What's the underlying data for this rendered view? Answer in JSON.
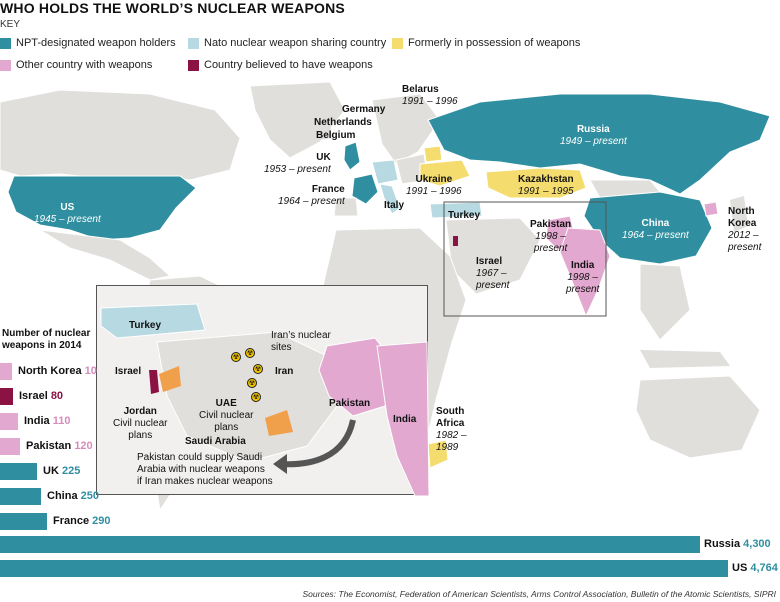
{
  "header": {
    "title": "WHO HOLDS THE WORLD’S NUCLEAR WEAPONS",
    "key_label": "KEY"
  },
  "legend": [
    {
      "label": "NPT-designated weapon holders",
      "color": "#2f8fa0"
    },
    {
      "label": "Nato nuclear weapon sharing country",
      "color": "#b6d9e2"
    },
    {
      "label": "Formerly in possession of weapons",
      "color": "#f5dc6e"
    },
    {
      "label": "Other country with weapons",
      "color": "#e2a8cf"
    },
    {
      "label": "Country believed to have weapons",
      "color": "#8b1344"
    }
  ],
  "map_labels": {
    "us": {
      "name": "US",
      "years": "1945 – present"
    },
    "russia": {
      "name": "Russia",
      "years": "1949 – present"
    },
    "china": {
      "name": "China",
      "years": "1964 – present"
    },
    "uk": {
      "name": "UK",
      "years": "1953 – present"
    },
    "france": {
      "name": "France",
      "years": "1964 – present"
    },
    "belarus": {
      "name": "Belarus",
      "years": "1991 – 1996"
    },
    "ukraine": {
      "name": "Ukraine",
      "years": "1991 – 1996"
    },
    "kazakhstan": {
      "name": "Kazakhstan",
      "years": "1991 – 1995"
    },
    "germany": "Germany",
    "netherlands": "Netherlands",
    "belgium": "Belgium",
    "italy": "Italy",
    "turkey": "Turkey",
    "pakistan": {
      "name": "Pakistan",
      "years_1": "1998 –",
      "years_2": "present"
    },
    "india": {
      "name": "India",
      "years_1": "1998 –",
      "years_2": "present"
    },
    "israel": {
      "name": "Israel",
      "years_1": "1967 –",
      "years_2": "present"
    },
    "north_korea": {
      "name_1": "North",
      "name_2": "Korea",
      "years_1": "2012 –",
      "years_2": "present"
    },
    "south_africa": {
      "name_1": "South",
      "name_2": "Africa",
      "years_1": "1982 –",
      "years_2": "1989"
    }
  },
  "inset": {
    "turkey": "Turkey",
    "israel": "Israel",
    "iran": "Iran",
    "iran_sites_1": "Iran’s nuclear",
    "iran_sites_2": "sites",
    "uae_1": "UAE",
    "uae_2": "Civil nuclear",
    "uae_3": "plans",
    "jordan_1": "Jordan",
    "jordan_2": "Civil nuclear",
    "jordan_3": "plans",
    "saudi": "Saudi Arabia",
    "pakistan": "Pakistan",
    "india": "India",
    "note_1": "Pakistan could supply Saudi",
    "note_2": "Arabia with nuclear weapons",
    "note_3": "if Iran makes nuclear weapons"
  },
  "bar_heading_1": "Number of nuclear",
  "bar_heading_2": "weapons in 2014",
  "chart_data": {
    "type": "bar",
    "orientation": "horizontal",
    "title": "Number of nuclear weapons in 2014",
    "categories": [
      "North Korea",
      "Israel",
      "India",
      "Pakistan",
      "UK",
      "China",
      "France",
      "Russia",
      "US"
    ],
    "values": [
      10,
      80,
      110,
      120,
      225,
      250,
      290,
      4300,
      4764
    ],
    "value_labels": [
      "10",
      "80",
      "110",
      "120",
      "225",
      "250",
      "290",
      "4,300",
      "4,764"
    ],
    "colors": [
      "#e2a8cf",
      "#8b1344",
      "#e2a8cf",
      "#e2a8cf",
      "#2f8fa0",
      "#2f8fa0",
      "#2f8fa0",
      "#2f8fa0",
      "#2f8fa0"
    ],
    "value_colors": [
      "#d98bbd",
      "#8b1344",
      "#d98bbd",
      "#d98bbd",
      "#2f8fa0",
      "#2f8fa0",
      "#2f8fa0",
      "#2f8fa0",
      "#2f8fa0"
    ],
    "xlim": [
      0,
      4764
    ]
  },
  "sources": "Sources: The Economist, Federation of American Scientists, Arms Control Association, Bulletin of the Atomic Scientists, SIPRI",
  "colors": {
    "land": "#e1dfdc",
    "npt": "#2f8fa0",
    "nato": "#b6d9e2",
    "former": "#f5dc6e",
    "other": "#e2a8cf",
    "believed": "#8b1344",
    "orange_plans": "#f0a04b"
  },
  "icons": [
    "radiation-icon",
    "curved-arrow-icon"
  ]
}
